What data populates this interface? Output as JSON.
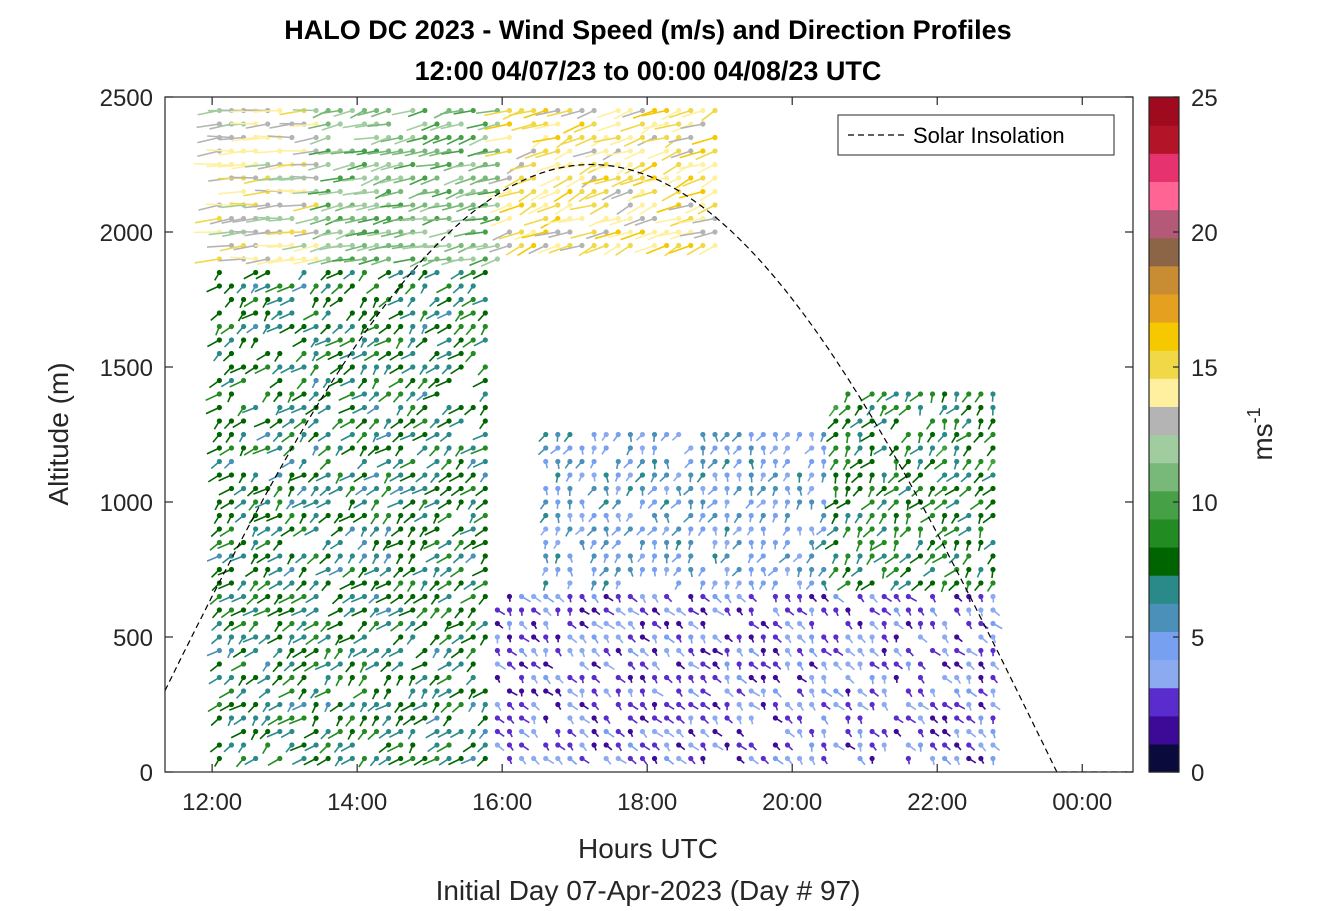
{
  "chart_data": {
    "type": "scatter",
    "title_line1": "HALO DC 2023 - Wind Speed (m/s) and Direction Profiles",
    "title_line2": "12:00 04/07/23 to 00:00 04/08/23  UTC",
    "xlabel": "Hours UTC",
    "sublabel": "Initial Day 07-Apr-2023 (Day # 97)",
    "ylabel": "Altitude (m)",
    "xlim_hours": [
      11.35,
      24.7
    ],
    "ylim": [
      0,
      2500
    ],
    "x_ticks": [
      {
        "hour": 12,
        "label": "12:00"
      },
      {
        "hour": 14,
        "label": "14:00"
      },
      {
        "hour": 16,
        "label": "16:00"
      },
      {
        "hour": 18,
        "label": "18:00"
      },
      {
        "hour": 20,
        "label": "20:00"
      },
      {
        "hour": 22,
        "label": "22:00"
      },
      {
        "hour": 24,
        "label": "00:00"
      }
    ],
    "y_ticks": [
      0,
      500,
      1000,
      1500,
      2000,
      2500
    ],
    "legend": {
      "label": "Solar Insolation",
      "position": "top-right",
      "style": "dashed"
    },
    "colorbar": {
      "label": "ms",
      "label_exponent": "-1",
      "range": [
        0,
        25
      ],
      "ticks": [
        0,
        5,
        10,
        15,
        20,
        25
      ],
      "colors": [
        "#0a0a3c",
        "#3c0a96",
        "#5a2ccd",
        "#8caaf0",
        "#78a0f0",
        "#4a90b8",
        "#2a8a8a",
        "#006400",
        "#228b22",
        "#46a046",
        "#78b878",
        "#a0cca0",
        "#b4b4b4",
        "#fff0a0",
        "#f0d846",
        "#f5c800",
        "#e6a020",
        "#c88c32",
        "#8c6446",
        "#b45a78",
        "#ff6494",
        "#e6326e",
        "#b41428",
        "#a00a1e"
      ]
    },
    "solar_insolation": {
      "sunrise_hour": 10.8,
      "sunset_hour": 23.65,
      "peak_altitude_equiv": 2250,
      "peak_hour": 17.3
    },
    "wind_profiles": {
      "start_hour": 12.1,
      "end_hour": 22.8,
      "interval_hours": 0.1667,
      "altitude_step_m": 50,
      "note_fields": "barbs colored by speed (m/s); direction shown by barb orientation"
    },
    "speed_structure": [
      {
        "hours": [
          12.0,
          15.8
        ],
        "alt_range": [
          0,
          1900
        ],
        "speed_ms": 7.5,
        "dir_deg": 210
      },
      {
        "hours": [
          12.0,
          13.5
        ],
        "alt_range": [
          1900,
          2500
        ],
        "speed_ms": 13.5,
        "dir_deg": 260
      },
      {
        "hours": [
          13.5,
          16.0
        ],
        "alt_range": [
          1900,
          2500
        ],
        "speed_ms": 11.0,
        "dir_deg": 240
      },
      {
        "hours": [
          16.0,
          19.0
        ],
        "alt_range": [
          1950,
          2500
        ],
        "speed_ms": 14.5,
        "dir_deg": 230
      },
      {
        "hours": [
          15.8,
          22.8
        ],
        "alt_range": [
          0,
          700
        ],
        "speed_ms": 3.0,
        "dir_deg": 160
      },
      {
        "hours": [
          16.5,
          22.8
        ],
        "alt_range": [
          700,
          1300
        ],
        "speed_ms": 5.0,
        "dir_deg": 190
      },
      {
        "hours": [
          20.5,
          22.8
        ],
        "alt_range": [
          700,
          1450
        ],
        "speed_ms": 8.0,
        "dir_deg": 200
      }
    ]
  }
}
